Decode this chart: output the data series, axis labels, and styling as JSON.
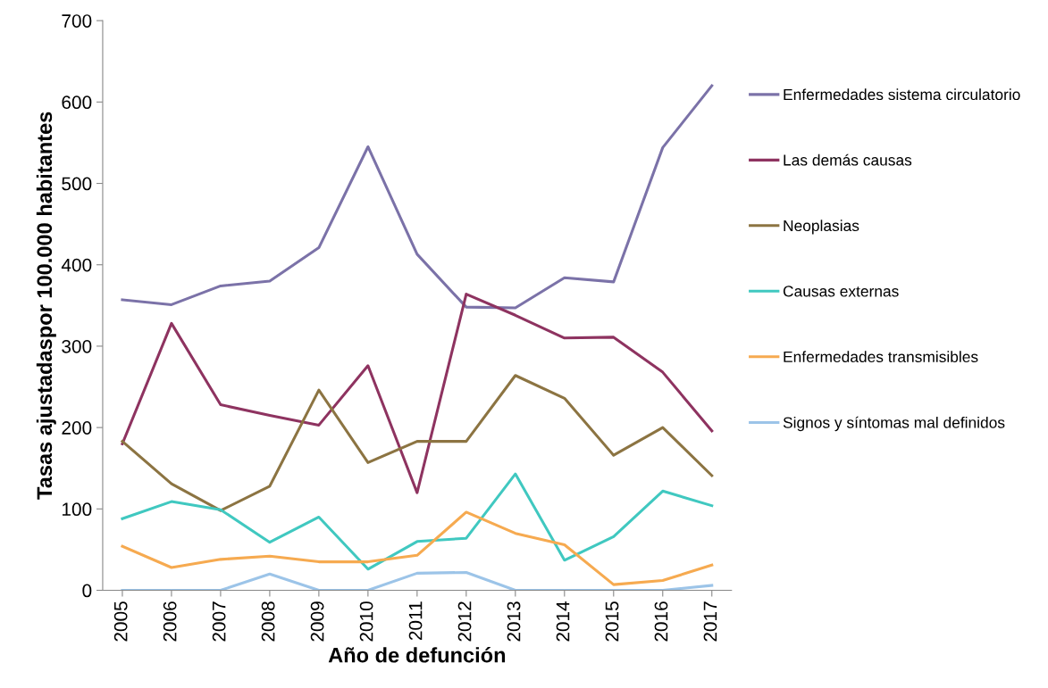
{
  "chart_data": {
    "type": "line",
    "xlabel": "Año de defunción",
    "ylabel": "Tasas ajustadaspor 100.000 habitantes",
    "categories": [
      "2005",
      "2006",
      "2007",
      "2008",
      "2009",
      "2010",
      "2011",
      "2012",
      "2013",
      "2014",
      "2015",
      "2016",
      "2017"
    ],
    "ylim": [
      0,
      700
    ],
    "yticks": [
      0,
      100,
      200,
      300,
      400,
      500,
      600,
      700
    ],
    "grid": false,
    "legend": "right",
    "marker": "none",
    "line_style": "solid",
    "series": [
      {
        "name": "Enfermedades sistema circulatorio",
        "color": "#7b72a8",
        "values": [
          357,
          351,
          374,
          380,
          421,
          545,
          413,
          348,
          347,
          384,
          379,
          544,
          620
        ]
      },
      {
        "name": "Las demás causas",
        "color": "#8e3360",
        "values": [
          180,
          328,
          228,
          215,
          203,
          276,
          120,
          364,
          338,
          310,
          311,
          268,
          196
        ]
      },
      {
        "name": "Neoplasias",
        "color": "#8c7442",
        "values": [
          183,
          131,
          98,
          128,
          246,
          157,
          183,
          183,
          264,
          236,
          166,
          200,
          141
        ]
      },
      {
        "name": "Causas externas",
        "color": "#40c8c0",
        "values": [
          88,
          109,
          99,
          59,
          90,
          26,
          60,
          64,
          143,
          37,
          66,
          122,
          104
        ]
      },
      {
        "name": "Enfermedades transmisibles",
        "color": "#f6aa50",
        "values": [
          54,
          28,
          38,
          42,
          35,
          35,
          43,
          96,
          70,
          56,
          7,
          12,
          31
        ]
      },
      {
        "name": "Signos y síntomas mal definidos",
        "color": "#9cc4e8",
        "values": [
          0,
          0,
          0,
          20,
          0,
          0,
          21,
          22,
          0,
          0,
          0,
          0,
          6
        ]
      }
    ]
  }
}
